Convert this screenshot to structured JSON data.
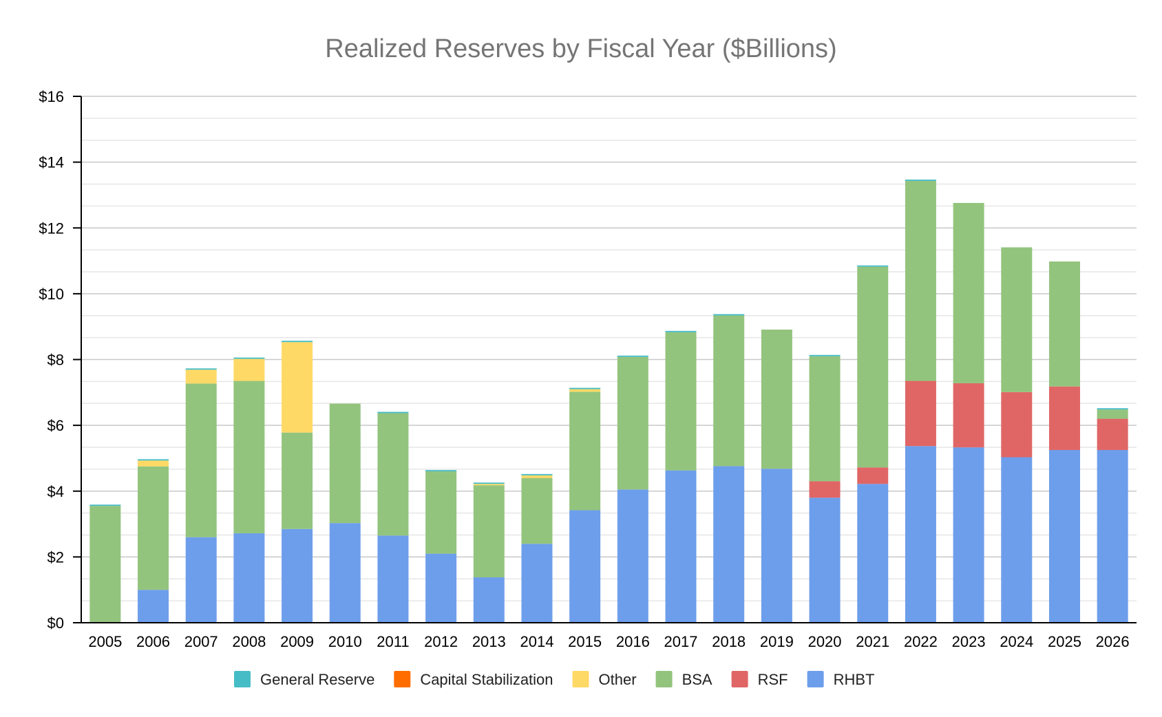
{
  "chart_data": {
    "type": "bar",
    "stacked": true,
    "title": "Realized Reserves by Fiscal Year ($Billions)",
    "xlabel": "",
    "ylabel": "",
    "ylim": [
      0,
      16
    ],
    "y_ticks": [
      "$0",
      "$2",
      "$4",
      "$6",
      "$8",
      "$10",
      "$12",
      "$14",
      "$16"
    ],
    "y_tick_values": [
      0,
      2,
      4,
      6,
      8,
      10,
      12,
      14,
      16
    ],
    "gridlines": true,
    "legend_position": "bottom",
    "categories": [
      "2005",
      "2006",
      "2007",
      "2008",
      "2009",
      "2010",
      "2011",
      "2012",
      "2013",
      "2014",
      "2015",
      "2016",
      "2017",
      "2018",
      "2019",
      "2020",
      "2021",
      "2022",
      "2023",
      "2024",
      "2025",
      "2026"
    ],
    "series": [
      {
        "name": "RHBT",
        "color": "#6d9eeb",
        "values": [
          0,
          1.0,
          2.6,
          2.72,
          2.85,
          3.03,
          2.65,
          2.1,
          1.38,
          2.4,
          3.42,
          4.05,
          4.63,
          4.76,
          4.68,
          3.8,
          4.22,
          5.37,
          5.33,
          5.03,
          5.25,
          5.25
        ]
      },
      {
        "name": "RSF",
        "color": "#e06666",
        "values": [
          0,
          0,
          0,
          0,
          0,
          0,
          0,
          0,
          0,
          0,
          0,
          0,
          0,
          0,
          0,
          0.5,
          0.5,
          1.98,
          1.95,
          1.98,
          1.93,
          0.95
        ]
      },
      {
        "name": "BSA",
        "color": "#93c47d",
        "values": [
          3.55,
          3.75,
          4.67,
          4.63,
          2.93,
          3.63,
          3.72,
          2.5,
          2.8,
          2.0,
          3.6,
          4.03,
          4.2,
          4.58,
          4.23,
          3.8,
          6.1,
          6.08,
          5.48,
          4.4,
          3.8,
          0.28
        ]
      },
      {
        "name": "Other",
        "color": "#ffd966",
        "values": [
          0,
          0.18,
          0.42,
          0.67,
          2.75,
          0,
          0,
          0,
          0.04,
          0.08,
          0.08,
          0,
          0,
          0,
          0,
          0,
          0,
          0,
          0,
          0,
          0,
          0
        ]
      },
      {
        "name": "Capital Stabilization",
        "color": "#ff6d01",
        "values": [
          0,
          0,
          0,
          0,
          0,
          0,
          0,
          0,
          0,
          0,
          0,
          0,
          0,
          0,
          0,
          0,
          0,
          0,
          0,
          0,
          0,
          0
        ]
      },
      {
        "name": "General Reserve",
        "color": "#46bdc6",
        "values": [
          0.04,
          0.04,
          0.04,
          0.04,
          0.04,
          0,
          0.04,
          0.04,
          0.04,
          0.04,
          0.04,
          0.04,
          0.04,
          0.04,
          0,
          0.04,
          0.04,
          0.04,
          0,
          0,
          0,
          0.04
        ]
      }
    ],
    "legend_order": [
      "General Reserve",
      "Capital Stabilization",
      "Other",
      "BSA",
      "RSF",
      "RHBT"
    ]
  }
}
